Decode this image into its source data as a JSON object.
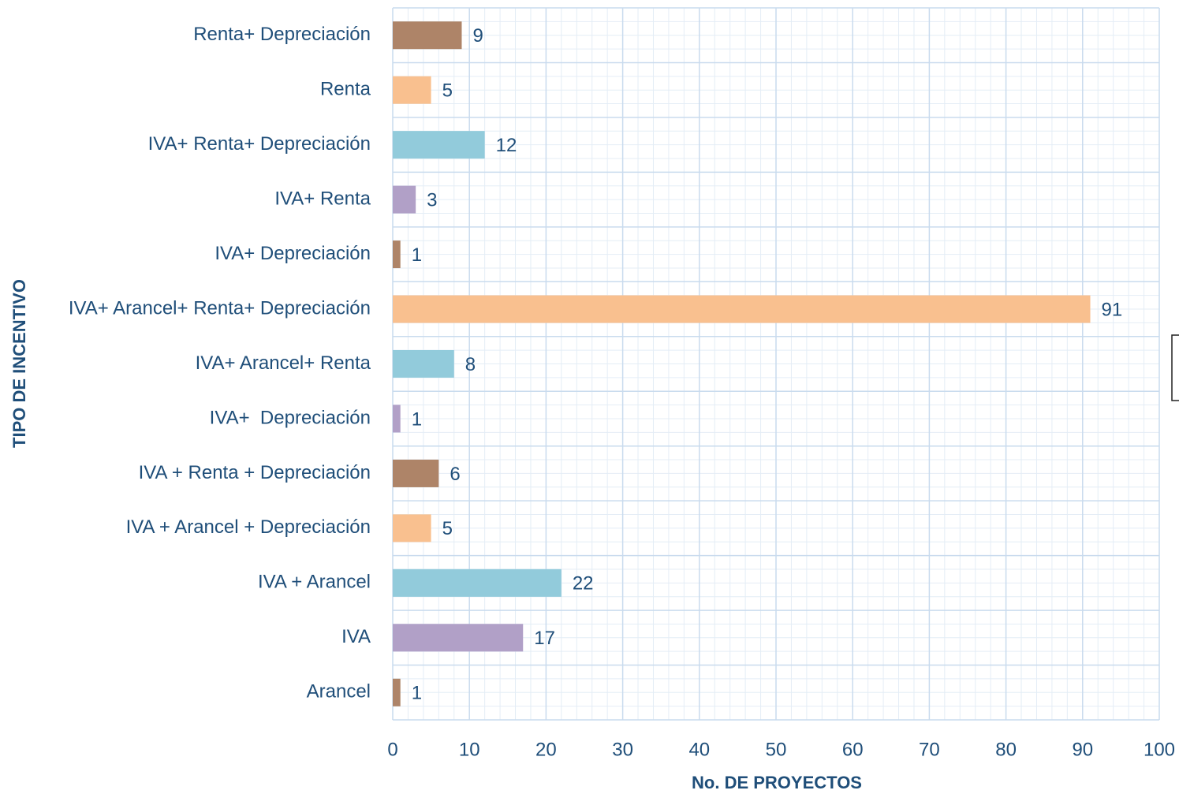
{
  "chart_data": {
    "type": "barh",
    "x_label": "No. DE PROYECTOS",
    "y_label": "TIPO DE INCENTIVO",
    "categories": [
      "Renta+ Depreciación",
      "Renta",
      "IVA+ Renta+ Depreciación",
      "IVA+ Renta",
      "IVA+ Depreciación",
      "IVA+ Arancel+ Renta+ Depreciación",
      "IVA+ Arancel+ Renta",
      "IVA+  Depreciación",
      "IVA + Renta + Depreciación",
      "IVA + Arancel + Depreciación",
      "IVA + Arancel",
      "IVA",
      "Arancel"
    ],
    "values": [
      9,
      5,
      12,
      3,
      1,
      91,
      8,
      1,
      6,
      5,
      22,
      17,
      1
    ],
    "colors": [
      "#ae8468",
      "#f9c08f",
      "#92cbdb",
      "#b1a0c7",
      "#ae8468",
      "#f9c08f",
      "#92cbdb",
      "#b1a0c7",
      "#ae8468",
      "#f9c08f",
      "#92cbdb",
      "#b1a0c7",
      "#ae8468"
    ],
    "xlim": [
      0,
      100
    ],
    "xticks": [
      0,
      10,
      20,
      30,
      40,
      50,
      60,
      70,
      80,
      90,
      100
    ],
    "grid": true,
    "minor_grid": true
  }
}
